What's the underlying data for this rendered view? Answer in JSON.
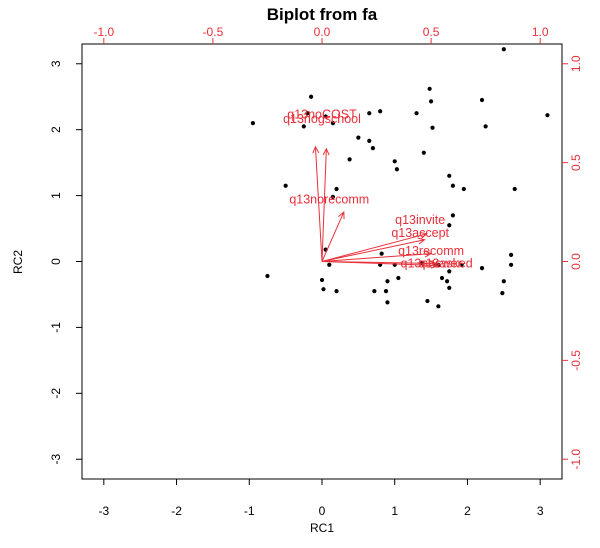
{
  "chart_data": {
    "type": "scatter",
    "title": "Biplot from fa",
    "xlabel": "RC1",
    "ylabel": "RC2",
    "xlim": [
      -3.3,
      3.3
    ],
    "ylim": [
      -3.3,
      3.3
    ],
    "x_ticks": [
      "-3",
      "-2",
      "-1",
      "0",
      "1",
      "2",
      "3"
    ],
    "y_ticks": [
      "-3",
      "-2",
      "-1",
      "0",
      "1",
      "2",
      "3"
    ],
    "loading_lim": [
      -1.1,
      1.1
    ],
    "top_ticks": [
      "-1.0",
      "-0.5",
      "0.0",
      "0.5",
      "1.0"
    ],
    "right_ticks": [
      "-1.0",
      "-0.5",
      "0.0",
      "0.5",
      "1.0"
    ],
    "scores_color": "#000000",
    "loadings_color": "#e8303a",
    "scores": [
      [
        -0.95,
        2.1
      ],
      [
        -0.5,
        1.15
      ],
      [
        -0.75,
        -0.22
      ],
      [
        -0.15,
        2.5
      ],
      [
        -0.2,
        2.25
      ],
      [
        -0.25,
        2.05
      ],
      [
        0.05,
        2.2
      ],
      [
        0.15,
        2.1
      ],
      [
        0.5,
        1.88
      ],
      [
        0.65,
        1.83
      ],
      [
        0.7,
        1.72
      ],
      [
        0.38,
        1.55
      ],
      [
        0.2,
        1.1
      ],
      [
        0.05,
        0.18
      ],
      [
        0.15,
        0.98
      ],
      [
        0.1,
        -0.05
      ],
      [
        0.2,
        -0.45
      ],
      [
        0.0,
        -0.28
      ],
      [
        0.02,
        -0.42
      ],
      [
        0.65,
        2.25
      ],
      [
        0.8,
        2.28
      ],
      [
        1.0,
        1.52
      ],
      [
        1.03,
        1.4
      ],
      [
        1.3,
        2.25
      ],
      [
        1.4,
        1.65
      ],
      [
        1.48,
        2.62
      ],
      [
        1.5,
        2.43
      ],
      [
        1.52,
        2.03
      ],
      [
        1.75,
        1.3
      ],
      [
        1.8,
        1.15
      ],
      [
        1.95,
        1.1
      ],
      [
        1.8,
        0.7
      ],
      [
        1.75,
        0.55
      ],
      [
        2.2,
        2.45
      ],
      [
        2.25,
        2.05
      ],
      [
        2.5,
        3.22
      ],
      [
        2.65,
        1.1
      ],
      [
        3.1,
        2.22
      ],
      [
        2.6,
        0.1
      ],
      [
        2.6,
        -0.05
      ],
      [
        2.5,
        -0.3
      ],
      [
        2.48,
        -0.48
      ],
      [
        1.75,
        -0.15
      ],
      [
        1.72,
        -0.3
      ],
      [
        1.75,
        -0.4
      ],
      [
        1.65,
        -0.25
      ],
      [
        1.6,
        -0.05
      ],
      [
        1.55,
        -0.05
      ],
      [
        1.6,
        -0.68
      ],
      [
        1.45,
        -0.6
      ],
      [
        1.0,
        -0.05
      ],
      [
        1.05,
        -0.25
      ],
      [
        0.9,
        -0.62
      ],
      [
        0.88,
        -0.45
      ],
      [
        0.8,
        -0.05
      ],
      [
        0.82,
        0.12
      ],
      [
        0.72,
        -0.45
      ],
      [
        0.9,
        -0.3
      ],
      [
        1.38,
        -0.02
      ],
      [
        1.92,
        -0.05
      ],
      [
        2.2,
        -0.1
      ]
    ],
    "loadings": [
      {
        "label": "q13noCOST",
        "x": -0.03,
        "y": 0.58,
        "label_x": 0.0,
        "label_y": 2.23
      },
      {
        "label": "q13nogschool",
        "x": 0.02,
        "y": 0.57,
        "label_x": 0.0,
        "label_y": 2.16
      },
      {
        "label": "q13norecomm",
        "x": 0.1,
        "y": 0.25,
        "label_x": 0.1,
        "label_y": 0.94
      },
      {
        "label": "q13invite",
        "x": 0.48,
        "y": 0.14,
        "label_x": 1.35,
        "label_y": 0.63
      },
      {
        "label": "q13accept",
        "x": 0.47,
        "y": 0.11,
        "label_x": 1.35,
        "label_y": 0.43
      },
      {
        "label": "q13recomm",
        "x": 0.5,
        "y": 0.04,
        "label_x": 1.5,
        "label_y": 0.16
      },
      {
        "label": "q13answer",
        "x": 0.52,
        "y": -0.01,
        "label_x": 1.5,
        "label_y": -0.03
      },
      {
        "label": "q13asked",
        "x": 0.53,
        "y": -0.02,
        "label_x": 1.7,
        "label_y": -0.03
      }
    ]
  }
}
